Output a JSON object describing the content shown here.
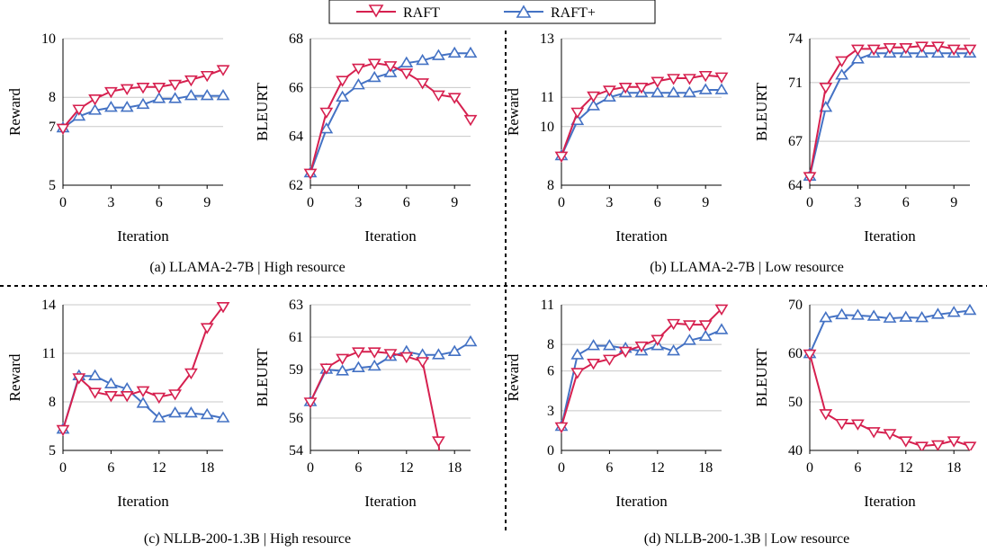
{
  "legend": [
    {
      "name": "RAFT",
      "color": "#d6204f",
      "marker": "triangle-down"
    },
    {
      "name": "RAFT+",
      "color": "#4472c4",
      "marker": "triangle-up"
    }
  ],
  "captions": [
    "(a)  LLAMA-2-7B | High resource",
    "(b)  LLAMA-2-7B | Low resource",
    "(c)  NLLB-200-1.3B | High resource",
    "(d)  NLLB-200-1.3B | Low resource"
  ],
  "chart_data": [
    {
      "type": "line",
      "xlabel": "Iteration",
      "ylabel": "Reward",
      "xlim": [
        0,
        10
      ],
      "xticks": [
        0,
        3,
        6,
        9
      ],
      "yticks": [
        5,
        7,
        8,
        10
      ],
      "ylim": [
        5,
        10
      ],
      "grid": true,
      "x": [
        0,
        1,
        2,
        3,
        4,
        5,
        6,
        7,
        8,
        9,
        10
      ],
      "series": [
        {
          "name": "RAFT",
          "values": [
            6.95,
            7.6,
            7.95,
            8.2,
            8.3,
            8.35,
            8.35,
            8.45,
            8.6,
            8.75,
            8.95
          ]
        },
        {
          "name": "RAFT+",
          "values": [
            6.95,
            7.35,
            7.55,
            7.65,
            7.65,
            7.75,
            7.95,
            7.95,
            8.05,
            8.05,
            8.05
          ]
        }
      ]
    },
    {
      "type": "line",
      "xlabel": "Iteration",
      "ylabel": "BLEURT",
      "xlim": [
        0,
        10
      ],
      "xticks": [
        0,
        3,
        6,
        9
      ],
      "yticks": [
        62,
        64,
        66,
        68
      ],
      "ylim": [
        62,
        68
      ],
      "grid": true,
      "x": [
        0,
        1,
        2,
        3,
        4,
        5,
        6,
        7,
        8,
        9,
        10
      ],
      "series": [
        {
          "name": "RAFT",
          "values": [
            62.5,
            65.0,
            66.3,
            66.8,
            67.0,
            66.9,
            66.6,
            66.2,
            65.7,
            65.6,
            64.7
          ]
        },
        {
          "name": "RAFT+",
          "values": [
            62.5,
            64.3,
            65.6,
            66.1,
            66.4,
            66.6,
            67.0,
            67.1,
            67.3,
            67.4,
            67.4
          ]
        }
      ]
    },
    {
      "type": "line",
      "xlabel": "Iteration",
      "ylabel": "Reward",
      "xlim": [
        0,
        10
      ],
      "xticks": [
        0,
        3,
        6,
        9
      ],
      "yticks": [
        8,
        10,
        11,
        13
      ],
      "ylim": [
        8,
        13
      ],
      "grid": true,
      "x": [
        0,
        1,
        2,
        3,
        4,
        5,
        6,
        7,
        8,
        9,
        10
      ],
      "series": [
        {
          "name": "RAFT",
          "values": [
            9.0,
            10.5,
            11.05,
            11.25,
            11.35,
            11.35,
            11.55,
            11.65,
            11.65,
            11.75,
            11.7
          ]
        },
        {
          "name": "RAFT+",
          "values": [
            9.0,
            10.2,
            10.7,
            11.0,
            11.15,
            11.15,
            11.15,
            11.15,
            11.15,
            11.25,
            11.25
          ]
        }
      ]
    },
    {
      "type": "line",
      "xlabel": "Iteration",
      "ylabel": "BLEURT",
      "xlim": [
        0,
        10
      ],
      "xticks": [
        0,
        3,
        6,
        9
      ],
      "yticks": [
        64,
        67,
        71,
        74
      ],
      "ylim": [
        64,
        74
      ],
      "grid": true,
      "x": [
        0,
        1,
        2,
        3,
        4,
        5,
        6,
        7,
        8,
        9,
        10
      ],
      "series": [
        {
          "name": "RAFT",
          "values": [
            64.6,
            70.7,
            72.5,
            73.3,
            73.3,
            73.4,
            73.4,
            73.5,
            73.5,
            73.3,
            73.3
          ]
        },
        {
          "name": "RAFT+",
          "values": [
            64.6,
            69.3,
            71.5,
            72.6,
            73.0,
            73.0,
            73.0,
            73.0,
            73.0,
            73.0,
            73.0
          ]
        }
      ]
    },
    {
      "type": "line",
      "xlabel": "Iteration",
      "ylabel": "Reward",
      "xlim": [
        0,
        20
      ],
      "xticks": [
        0,
        6,
        12,
        18
      ],
      "yticks": [
        5,
        8,
        11,
        14
      ],
      "ylim": [
        5,
        14
      ],
      "grid": true,
      "x": [
        0,
        2,
        4,
        6,
        8,
        10,
        12,
        14,
        16,
        18,
        20
      ],
      "series": [
        {
          "name": "RAFT",
          "values": [
            6.3,
            9.5,
            8.6,
            8.4,
            8.4,
            8.7,
            8.3,
            8.5,
            9.8,
            12.6,
            13.9
          ]
        },
        {
          "name": "RAFT+",
          "values": [
            6.3,
            9.6,
            9.6,
            9.1,
            8.8,
            7.9,
            7.0,
            7.3,
            7.3,
            7.2,
            7.0
          ]
        }
      ]
    },
    {
      "type": "line",
      "xlabel": "Iteration",
      "ylabel": "BLEURT",
      "xlim": [
        0,
        20
      ],
      "xticks": [
        0,
        6,
        12,
        18
      ],
      "yticks": [
        54,
        56,
        59,
        61,
        63
      ],
      "ylim": [
        54,
        63
      ],
      "grid": true,
      "x": [
        0,
        2,
        4,
        6,
        8,
        10,
        12,
        14,
        16
      ],
      "series": [
        {
          "name": "RAFT",
          "values": [
            57.0,
            59.1,
            59.7,
            60.1,
            60.1,
            60.0,
            59.8,
            59.5,
            54.6
          ]
        },
        {
          "name": "RAFT+",
          "x": [
            0,
            2,
            4,
            6,
            8,
            10,
            12,
            14,
            16,
            18,
            20
          ],
          "values": [
            57.0,
            59.0,
            58.9,
            59.1,
            59.2,
            59.8,
            60.1,
            59.9,
            59.9,
            60.1,
            60.7
          ]
        }
      ]
    },
    {
      "type": "line",
      "xlabel": "Iteration",
      "ylabel": "Reward",
      "xlim": [
        0,
        20
      ],
      "xticks": [
        0,
        6,
        12,
        18
      ],
      "yticks": [
        0,
        3,
        6,
        8,
        11
      ],
      "ylim": [
        0,
        11
      ],
      "grid": true,
      "x": [
        0,
        2,
        4,
        6,
        8,
        10,
        12,
        14,
        16,
        18,
        20
      ],
      "series": [
        {
          "name": "RAFT",
          "values": [
            1.8,
            5.9,
            6.6,
            6.9,
            7.5,
            7.9,
            8.4,
            9.6,
            9.5,
            9.5,
            10.7
          ]
        },
        {
          "name": "RAFT+",
          "values": [
            1.8,
            7.2,
            7.9,
            7.9,
            7.7,
            7.5,
            7.9,
            7.5,
            8.3,
            8.6,
            9.1
          ]
        }
      ]
    },
    {
      "type": "line",
      "xlabel": "Iteration",
      "ylabel": "BLEURT",
      "xlim": [
        0,
        20
      ],
      "xticks": [
        0,
        6,
        12,
        18
      ],
      "yticks": [
        40,
        50,
        60,
        70
      ],
      "ylim": [
        40,
        70
      ],
      "grid": true,
      "x": [
        0,
        2,
        4,
        6,
        8,
        10,
        12,
        14,
        16,
        18,
        20
      ],
      "series": [
        {
          "name": "RAFT",
          "values": [
            59.9,
            47.6,
            45.6,
            45.5,
            43.9,
            43.5,
            42.0,
            40.9,
            41.2,
            42.0,
            40.9
          ]
        },
        {
          "name": "RAFT+",
          "values": [
            59.9,
            67.3,
            67.9,
            67.8,
            67.6,
            67.2,
            67.4,
            67.3,
            68.0,
            68.4,
            68.8
          ]
        }
      ]
    }
  ]
}
